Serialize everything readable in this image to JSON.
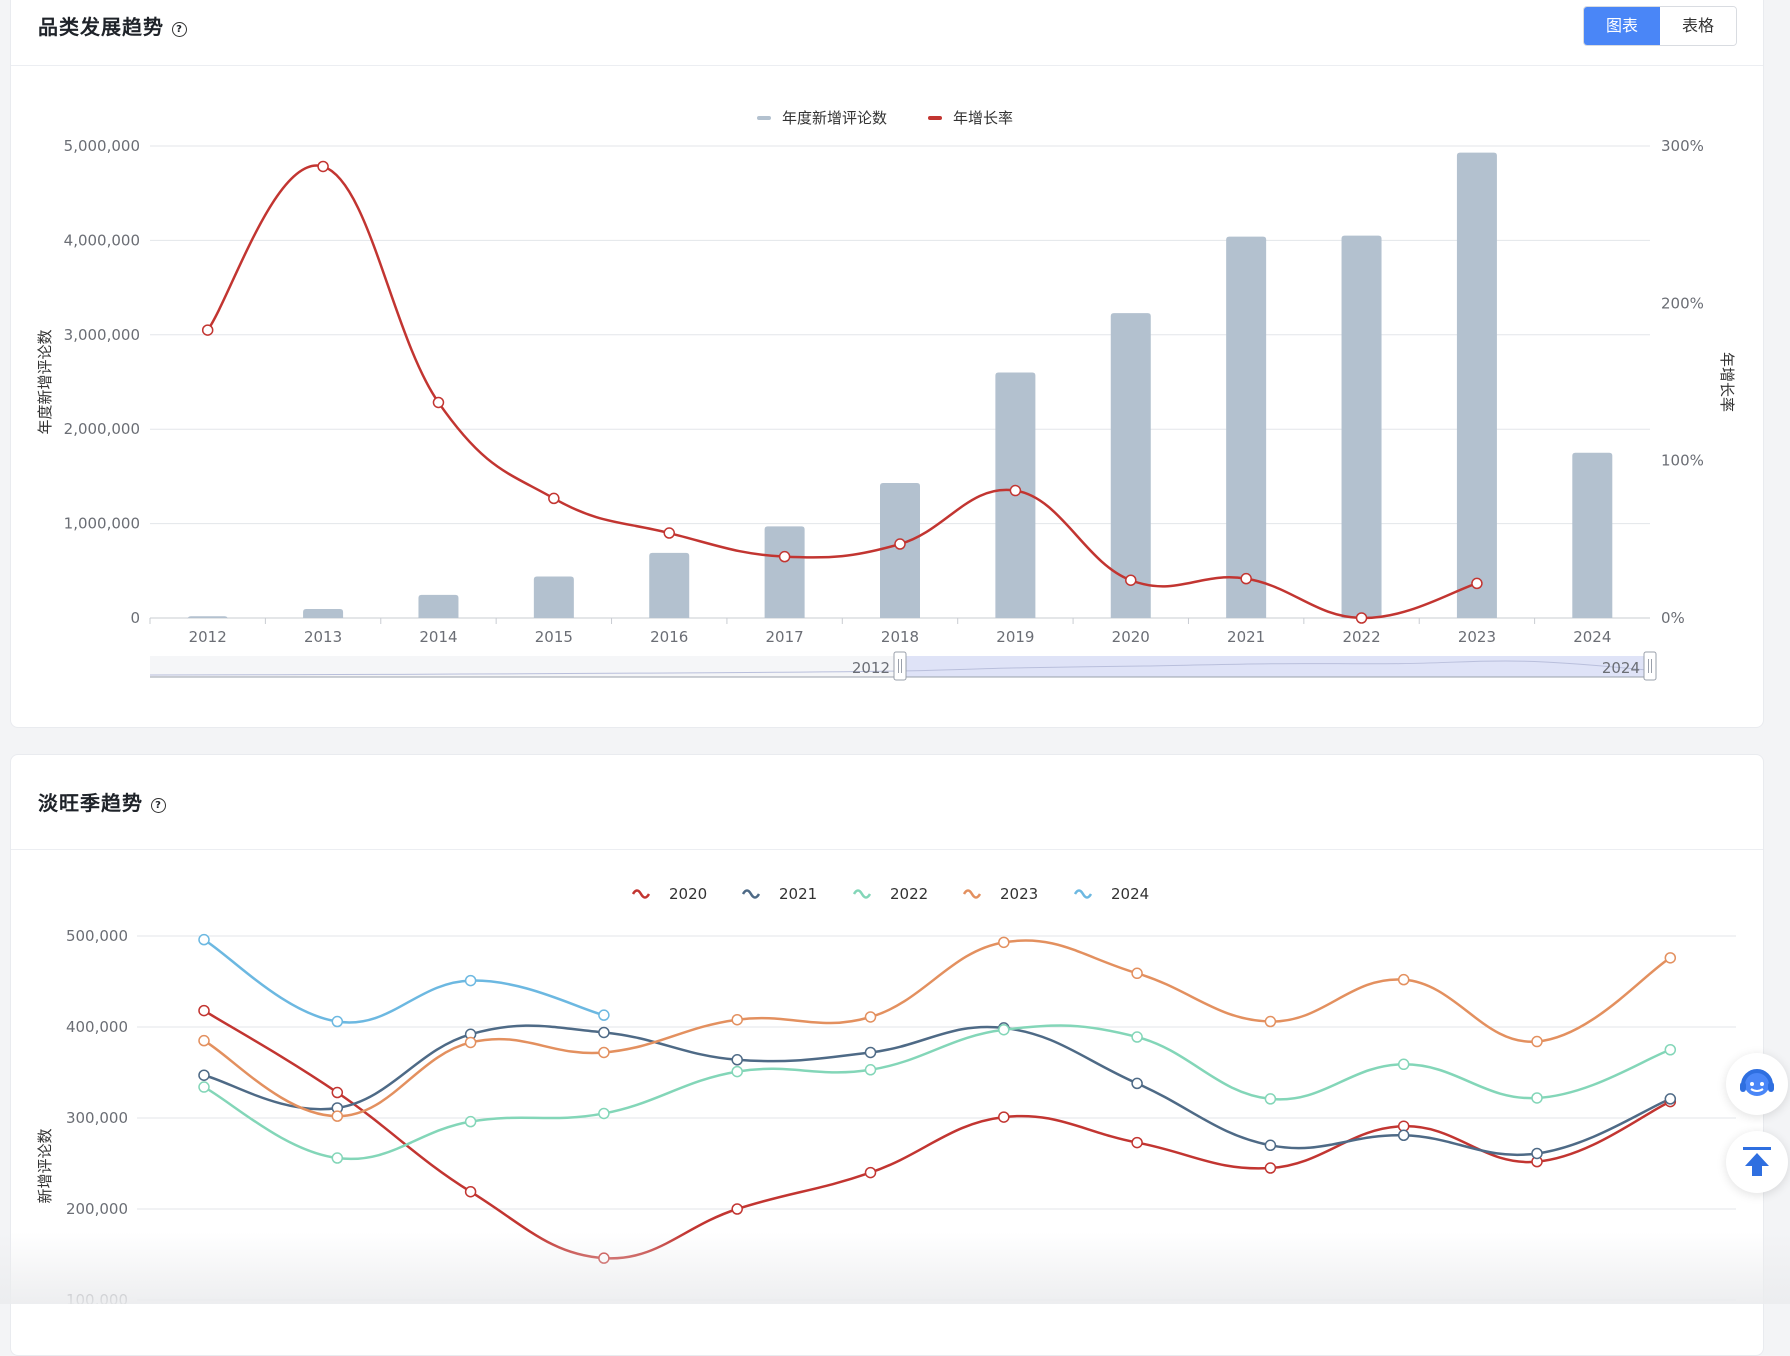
{
  "section1": {
    "title": "品类发展趋势",
    "help_icon": "question-circle-icon",
    "toggle": {
      "chart_label": "图表",
      "table_label": "表格",
      "active": "chart"
    }
  },
  "section2": {
    "title": "淡旺季趋势",
    "help_icon": "question-circle-icon"
  },
  "chart_data": [
    {
      "type": "bar",
      "categories": [
        "2012",
        "2013",
        "2014",
        "2015",
        "2016",
        "2017",
        "2018",
        "2019",
        "2020",
        "2021",
        "2022",
        "2023",
        "2024"
      ],
      "series": [
        {
          "name": "年度新增评论数",
          "kind": "bar",
          "axis": "left",
          "color": "#b3c1cf",
          "values": [
            18000,
            95000,
            245000,
            440000,
            690000,
            970000,
            1430000,
            2600000,
            3230000,
            4040000,
            4050000,
            4930000,
            1750000
          ]
        },
        {
          "name": "年增长率",
          "kind": "line",
          "axis": "right",
          "color": "#c23531",
          "values": [
            183,
            287,
            137,
            76,
            54,
            39,
            47,
            81,
            24,
            25,
            0,
            22,
            null
          ]
        }
      ],
      "ylabel": "年度新增评论数",
      "y2label": "年增长率",
      "ylim": [
        0,
        5000000
      ],
      "yticks": [
        "0",
        "1,000,000",
        "2,000,000",
        "3,000,000",
        "4,000,000",
        "5,000,000"
      ],
      "y2lim": [
        0,
        300
      ],
      "y2ticks": [
        "0%",
        "100%",
        "200%",
        "300%"
      ],
      "grid": true,
      "legend": "top-center",
      "data_zoom": {
        "start_label": "2012",
        "end_label": "2024",
        "start_fraction": 0.5,
        "end_fraction": 1.0
      }
    },
    {
      "type": "line",
      "months": 12,
      "series": [
        {
          "name": "2020",
          "color": "#c23531",
          "values": [
            418000,
            328000,
            219000,
            146000,
            200000,
            240000,
            301000,
            273000,
            245000,
            291000,
            252000,
            318000
          ]
        },
        {
          "name": "2021",
          "color": "#4e6a86",
          "values": [
            347000,
            311000,
            392000,
            394000,
            364000,
            372000,
            399000,
            338000,
            270000,
            281000,
            261000,
            321000
          ]
        },
        {
          "name": "2022",
          "color": "#83d6b8",
          "values": [
            334000,
            256000,
            296000,
            305000,
            351000,
            353000,
            397000,
            389000,
            321000,
            359000,
            322000,
            375000
          ]
        },
        {
          "name": "2023",
          "color": "#e3905f",
          "values": [
            385000,
            302000,
            383000,
            372000,
            408000,
            411000,
            493000,
            459000,
            406000,
            452000,
            384000,
            476000
          ]
        },
        {
          "name": "2024",
          "color": "#6cb8e1",
          "values": [
            496000,
            406000,
            451000,
            413000
          ]
        }
      ],
      "ylabel": "新增评论数",
      "ylim": [
        100000,
        500000
      ],
      "yticks": [
        "100,000",
        "200,000",
        "300,000",
        "400,000",
        "500,000"
      ],
      "grid": true,
      "legend": "top-center"
    }
  ],
  "floating": {
    "service_icon": "customer-service-icon",
    "top_icon": "back-to-top-icon"
  }
}
